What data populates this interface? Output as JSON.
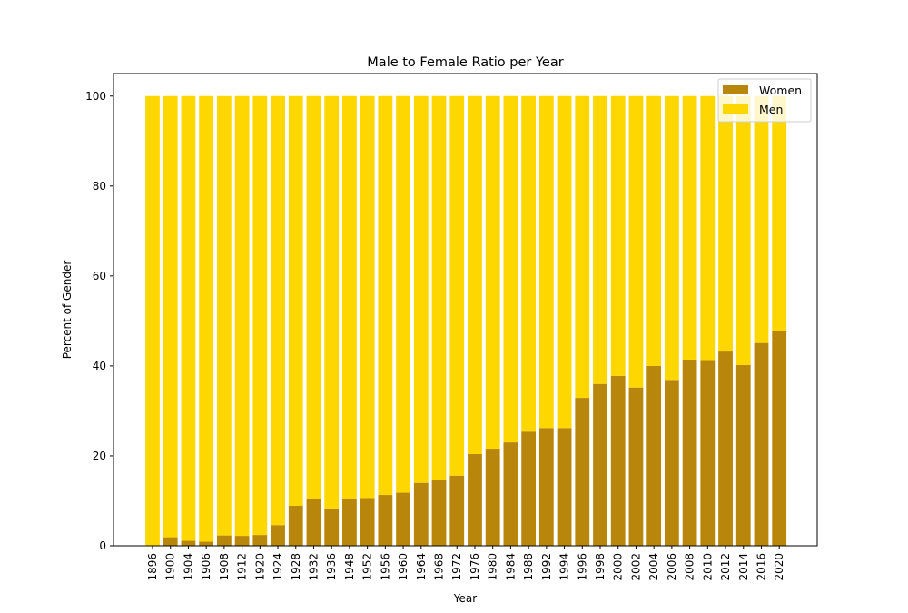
{
  "chart_data": {
    "type": "bar",
    "stacked": true,
    "title": "Male to Female Ratio per Year",
    "xlabel": "Year",
    "ylabel": "Percent of Gender",
    "ylim": [
      0,
      105
    ],
    "yticks": [
      0,
      20,
      40,
      60,
      80,
      100
    ],
    "grid": false,
    "legend_position": "top-right",
    "categories": [
      "1896",
      "1900",
      "1904",
      "1906",
      "1908",
      "1912",
      "1920",
      "1924",
      "1928",
      "1932",
      "1936",
      "1948",
      "1952",
      "1956",
      "1960",
      "1964",
      "1968",
      "1972",
      "1976",
      "1980",
      "1984",
      "1988",
      "1992",
      "1994",
      "1996",
      "1998",
      "2000",
      "2002",
      "2004",
      "2006",
      "2008",
      "2010",
      "2012",
      "2014",
      "2016",
      "2020"
    ],
    "series": [
      {
        "name": "Women",
        "color": "#b8860b",
        "values": [
          0,
          1.9,
          1.1,
          0.9,
          2.3,
          2.2,
          2.4,
          4.6,
          8.9,
          10.3,
          8.3,
          10.3,
          10.6,
          11.3,
          11.8,
          14.0,
          14.7,
          15.6,
          20.4,
          21.6,
          23.0,
          25.4,
          26.2,
          26.2,
          32.9,
          36.0,
          37.8,
          35.2,
          40.0,
          36.9,
          41.4,
          41.3,
          43.2,
          40.2,
          45.1,
          47.7
        ]
      },
      {
        "name": "Men",
        "color": "#ffd700",
        "values": [
          100,
          98.1,
          98.9,
          99.1,
          97.7,
          97.8,
          97.6,
          95.4,
          91.1,
          89.7,
          91.7,
          89.7,
          89.4,
          88.7,
          88.2,
          86.0,
          85.3,
          84.4,
          79.6,
          78.4,
          77.0,
          74.6,
          73.8,
          73.8,
          67.1,
          64.0,
          62.2,
          64.8,
          60.0,
          63.1,
          58.6,
          58.7,
          56.8,
          59.8,
          54.9,
          52.3
        ]
      }
    ]
  }
}
